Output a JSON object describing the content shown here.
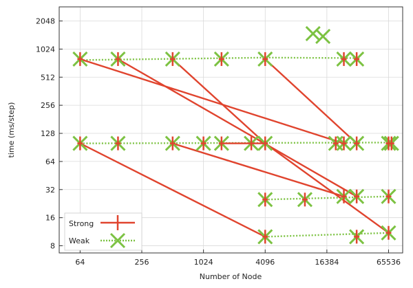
{
  "chart_data": {
    "type": "line",
    "title": "",
    "xlabel": "Number of Node",
    "ylabel": "time (ms/step)",
    "x_scale": "log2",
    "y_scale": "log2",
    "xlim": [
      40,
      90000
    ],
    "ylim": [
      6.7,
      2900
    ],
    "x_ticks": [
      64,
      256,
      1024,
      4096,
      16384,
      65536
    ],
    "x_tick_labels": [
      "64",
      "256",
      "1024",
      "4096",
      "16384",
      "65536"
    ],
    "y_ticks": [
      8,
      16,
      32,
      64,
      128,
      256,
      512,
      1024,
      2048
    ],
    "y_tick_labels": [
      "8",
      "16",
      "32",
      "64",
      "128",
      "256",
      "512",
      "1024",
      "2048"
    ],
    "grid": true,
    "legend_position": "bottom-left",
    "colors": {
      "strong": "#e0442e",
      "weak": "#7cc242"
    },
    "series": [
      {
        "name": "Strong",
        "style": "solid",
        "lines": [
          [
            [
              64,
              800
            ],
            [
              24000,
              100
            ]
          ],
          [
            [
              150,
              800
            ],
            [
              32000,
              27
            ]
          ],
          [
            [
              512,
              800
            ],
            [
              4096,
              100
            ],
            [
              65536,
              11
            ]
          ],
          [
            [
              4096,
              800
            ],
            [
              32000,
              100
            ]
          ],
          [
            [
              64,
              100
            ],
            [
              4096,
              10
            ]
          ],
          [
            [
              512,
              100
            ],
            [
              24000,
              27
            ]
          ],
          [
            [
              1536,
              100
            ],
            [
              4096,
              100
            ]
          ]
        ],
        "points": [
          [
            64,
            800
          ],
          [
            150,
            800
          ],
          [
            512,
            800
          ],
          [
            1536,
            800
          ],
          [
            4096,
            800
          ],
          [
            24000,
            800
          ],
          [
            32000,
            800
          ],
          [
            64,
            100
          ],
          [
            150,
            100
          ],
          [
            512,
            100
          ],
          [
            1024,
            100
          ],
          [
            1536,
            100
          ],
          [
            3000,
            100
          ],
          [
            4096,
            100
          ],
          [
            20000,
            100
          ],
          [
            24000,
            100
          ],
          [
            32000,
            100
          ],
          [
            65536,
            100
          ],
          [
            70000,
            100
          ],
          [
            4096,
            25
          ],
          [
            10000,
            25
          ],
          [
            24000,
            27
          ],
          [
            32000,
            27
          ],
          [
            65536,
            27
          ],
          [
            4096,
            10
          ],
          [
            32000,
            10
          ],
          [
            65536,
            11
          ]
        ]
      },
      {
        "name": "Weak",
        "style": "dotted",
        "lines": [
          [
            [
              64,
              780
            ],
            [
              4096,
              830
            ],
            [
              32000,
              820
            ]
          ],
          [
            [
              64,
              100
            ],
            [
              65536,
              102
            ]
          ],
          [
            [
              4096,
              25
            ],
            [
              65536,
              27
            ]
          ],
          [
            [
              4096,
              10
            ],
            [
              65536,
              11
            ]
          ]
        ],
        "points": [
          [
            64,
            800
          ],
          [
            150,
            800
          ],
          [
            512,
            800
          ],
          [
            1536,
            800
          ],
          [
            4096,
            800
          ],
          [
            24000,
            800
          ],
          [
            32000,
            800
          ],
          [
            64,
            100
          ],
          [
            150,
            100
          ],
          [
            512,
            100
          ],
          [
            1024,
            100
          ],
          [
            1536,
            100
          ],
          [
            3000,
            100
          ],
          [
            4096,
            100
          ],
          [
            20000,
            100
          ],
          [
            24000,
            100
          ],
          [
            32000,
            100
          ],
          [
            65536,
            100
          ],
          [
            70000,
            100
          ],
          [
            4096,
            25
          ],
          [
            10000,
            25
          ],
          [
            24000,
            27
          ],
          [
            32000,
            27
          ],
          [
            65536,
            27
          ],
          [
            4096,
            10
          ],
          [
            32000,
            10
          ],
          [
            65536,
            11
          ],
          [
            12000,
            1500
          ],
          [
            15000,
            1400
          ]
        ]
      }
    ]
  }
}
